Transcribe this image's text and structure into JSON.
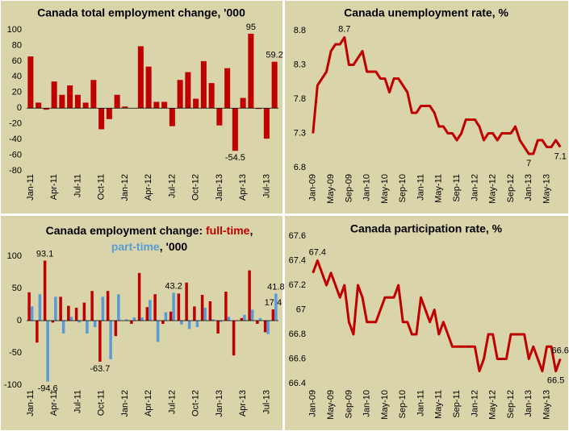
{
  "chart_data": [
    {
      "type": "bar",
      "title": "Canada total employment change, '000",
      "categories": [
        "Jan-11",
        null,
        null,
        "Apr-11",
        null,
        null,
        "Jul-11",
        null,
        null,
        "Oct-11",
        null,
        null,
        "Jan-12",
        null,
        null,
        "Apr-12",
        null,
        null,
        "Jul-12",
        null,
        null,
        "Oct-12",
        null,
        null,
        "Jan-13",
        null,
        null,
        "Apr-13",
        null,
        null,
        "Jul-13",
        null
      ],
      "series": [
        {
          "name": "total",
          "color": "#c00000",
          "values": [
            66,
            7,
            -2,
            34,
            17,
            29,
            17,
            7,
            36,
            -27,
            -14,
            17,
            2,
            0,
            79,
            53,
            8,
            8,
            -23,
            36,
            46,
            12,
            60,
            32,
            -22,
            51,
            -54.5,
            13,
            95,
            -1,
            -39,
            59.2
          ],
          "value_labels": [
            null,
            null,
            null,
            null,
            null,
            null,
            null,
            null,
            null,
            null,
            null,
            null,
            null,
            null,
            null,
            null,
            null,
            null,
            null,
            null,
            null,
            null,
            null,
            null,
            null,
            null,
            "-54.5",
            null,
            "95",
            null,
            null,
            "59.2"
          ]
        }
      ],
      "ylim": [
        -80,
        100
      ],
      "yticks": [
        -80,
        -60,
        -40,
        -20,
        0,
        20,
        40,
        60,
        80,
        100
      ]
    },
    {
      "type": "line",
      "title": "Canada unemployment rate, %",
      "categories": [
        "Jan-09",
        null,
        null,
        null,
        "May-09",
        null,
        null,
        null,
        "Sep-09",
        null,
        null,
        null,
        "Jan-10",
        null,
        null,
        null,
        "May-10",
        null,
        null,
        null,
        "Sep-10",
        null,
        null,
        null,
        "Jan-11",
        null,
        null,
        null,
        "May-11",
        null,
        null,
        null,
        "Sep-11",
        null,
        null,
        null,
        "Jan-12",
        null,
        null,
        null,
        "May-12",
        null,
        null,
        null,
        "Sep-12",
        null,
        null,
        null,
        "Jan-13",
        null,
        null,
        null,
        "May-13",
        null,
        null,
        null
      ],
      "series": [
        {
          "name": "unemployment rate",
          "color": "#c00000",
          "values": [
            7.3,
            8.0,
            8.1,
            8.2,
            8.5,
            8.6,
            8.6,
            8.7,
            8.3,
            8.3,
            8.4,
            8.5,
            8.2,
            8.2,
            8.2,
            8.1,
            8.1,
            7.9,
            8.1,
            8.1,
            8.0,
            7.9,
            7.6,
            7.6,
            7.7,
            7.7,
            7.7,
            7.6,
            7.4,
            7.4,
            7.3,
            7.3,
            7.2,
            7.3,
            7.5,
            7.5,
            7.5,
            7.4,
            7.2,
            7.3,
            7.3,
            7.2,
            7.3,
            7.3,
            7.3,
            7.4,
            7.2,
            7.1,
            7.0,
            7.0,
            7.2,
            7.2,
            7.1,
            7.1,
            7.2,
            7.1
          ],
          "value_labels": [
            null,
            null,
            null,
            null,
            null,
            null,
            null,
            "8.7",
            null,
            null,
            null,
            null,
            null,
            null,
            null,
            null,
            null,
            null,
            null,
            null,
            null,
            null,
            null,
            null,
            null,
            null,
            null,
            null,
            null,
            null,
            null,
            null,
            null,
            null,
            null,
            null,
            null,
            null,
            null,
            null,
            null,
            null,
            null,
            null,
            null,
            null,
            null,
            null,
            "7",
            null,
            null,
            null,
            null,
            null,
            null,
            "7.1"
          ]
        }
      ],
      "ylim": [
        6.8,
        8.8
      ],
      "yticks": [
        6.8,
        7.3,
        7.8,
        8.3,
        8.8
      ]
    },
    {
      "type": "bar",
      "title_parts": [
        "Canada employment change:",
        ",",
        ", '000"
      ],
      "categories": [
        "Jan-11",
        null,
        null,
        "Apr-11",
        null,
        null,
        "Jul-11",
        null,
        null,
        "Oct-11",
        null,
        null,
        "Jan-12",
        null,
        null,
        "Apr-12",
        null,
        null,
        "Jul-12",
        null,
        null,
        "Oct-12",
        null,
        null,
        "Jan-13",
        null,
        null,
        "Apr-13",
        null,
        null,
        "Jul-13",
        null
      ],
      "series": [
        {
          "name": "full-time",
          "color": "#c00000",
          "values": [
            44,
            -34,
            93.1,
            -3,
            37,
            23,
            20,
            28,
            46,
            -63.7,
            46,
            -24,
            0,
            -5,
            74,
            21,
            41,
            -5,
            14,
            42,
            59,
            22,
            40,
            30,
            -20,
            45,
            -54,
            4,
            78,
            -5,
            -18,
            17.4
          ],
          "value_labels": [
            null,
            null,
            "93.1",
            null,
            null,
            null,
            null,
            null,
            null,
            "-63.7",
            null,
            null,
            null,
            null,
            null,
            null,
            null,
            null,
            null,
            null,
            null,
            null,
            null,
            null,
            null,
            null,
            null,
            null,
            null,
            null,
            null,
            "17.4"
          ]
        },
        {
          "name": "part-time",
          "color": "#5b9bd5",
          "values": [
            22,
            41,
            -94.6,
            37,
            -20,
            6,
            -3,
            -20,
            -10,
            37,
            -60,
            41,
            2,
            5,
            5,
            32,
            -33,
            13,
            43.2,
            -6,
            -13,
            -10,
            20,
            2,
            -2,
            6,
            -1,
            9,
            17,
            4,
            -21,
            41.8
          ],
          "value_labels": [
            null,
            null,
            "-94.6",
            null,
            null,
            null,
            null,
            null,
            null,
            null,
            null,
            null,
            null,
            null,
            null,
            null,
            null,
            null,
            "43.2",
            null,
            null,
            null,
            null,
            null,
            null,
            null,
            null,
            null,
            null,
            null,
            null,
            "41.8"
          ]
        }
      ],
      "ylim": [
        -100,
        100
      ],
      "yticks": [
        -100,
        -50,
        0,
        50,
        100
      ]
    },
    {
      "type": "line",
      "title": "Canada participation rate, %",
      "categories": [
        "Jan-09",
        null,
        null,
        null,
        "May-09",
        null,
        null,
        null,
        "Sep-09",
        null,
        null,
        null,
        "Jan-10",
        null,
        null,
        null,
        "May-10",
        null,
        null,
        null,
        "Sep-10",
        null,
        null,
        null,
        "Jan-11",
        null,
        null,
        null,
        "May-11",
        null,
        null,
        null,
        "Sep-11",
        null,
        null,
        null,
        "Jan-12",
        null,
        null,
        null,
        "May-12",
        null,
        null,
        null,
        "Sep-12",
        null,
        null,
        null,
        "Jan-13",
        null,
        null,
        null,
        "May-13",
        null,
        null,
        null
      ],
      "series": [
        {
          "name": "participation rate",
          "color": "#c00000",
          "values": [
            67.3,
            67.4,
            67.3,
            67.2,
            67.3,
            67.2,
            67.1,
            67.2,
            66.9,
            66.8,
            67.2,
            67.1,
            66.9,
            66.9,
            66.9,
            67.0,
            67.1,
            67.1,
            67.1,
            67.2,
            66.9,
            66.9,
            66.8,
            66.8,
            67.1,
            67.0,
            66.9,
            67.0,
            66.8,
            66.9,
            66.8,
            66.7,
            66.7,
            66.7,
            66.7,
            66.7,
            66.7,
            66.5,
            66.6,
            66.8,
            66.8,
            66.6,
            66.6,
            66.6,
            66.8,
            66.8,
            66.8,
            66.8,
            66.6,
            66.7,
            66.6,
            66.5,
            66.7,
            66.7,
            66.5,
            66.6
          ],
          "value_labels": [
            null,
            "67.4",
            null,
            null,
            null,
            null,
            null,
            null,
            null,
            null,
            null,
            null,
            null,
            null,
            null,
            null,
            null,
            null,
            null,
            null,
            null,
            null,
            null,
            null,
            null,
            null,
            null,
            null,
            null,
            null,
            null,
            null,
            null,
            null,
            null,
            null,
            null,
            null,
            null,
            null,
            null,
            null,
            null,
            null,
            null,
            null,
            null,
            null,
            null,
            null,
            null,
            null,
            null,
            null,
            "66.5",
            "66.6"
          ]
        }
      ],
      "ylim": [
        66.4,
        67.6
      ],
      "yticks": [
        66.4,
        66.6,
        66.8,
        67,
        67.2,
        67.4,
        67.6
      ]
    }
  ]
}
